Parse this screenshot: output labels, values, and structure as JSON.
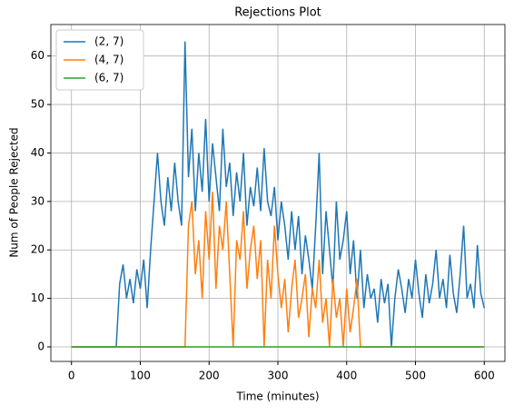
{
  "chart_data": {
    "type": "line",
    "title": "Rejections Plot",
    "x_label": "Time (minutes)",
    "y_label": "Num of People Rejected",
    "x": [
      0,
      5,
      10,
      15,
      20,
      25,
      30,
      35,
      40,
      45,
      50,
      55,
      60,
      65,
      70,
      75,
      80,
      85,
      90,
      95,
      100,
      105,
      110,
      115,
      120,
      125,
      130,
      135,
      140,
      145,
      150,
      155,
      160,
      165,
      170,
      175,
      180,
      185,
      190,
      195,
      200,
      205,
      210,
      215,
      220,
      225,
      230,
      235,
      240,
      245,
      250,
      255,
      260,
      265,
      270,
      275,
      280,
      285,
      290,
      295,
      300,
      305,
      310,
      315,
      320,
      325,
      330,
      335,
      340,
      345,
      350,
      355,
      360,
      365,
      370,
      375,
      380,
      385,
      390,
      395,
      400,
      405,
      410,
      415,
      420,
      425,
      430,
      435,
      440,
      445,
      450,
      455,
      460,
      465,
      470,
      475,
      480,
      485,
      490,
      495,
      500,
      505,
      510,
      515,
      520,
      525,
      530,
      535,
      540,
      545,
      550,
      555,
      560,
      565,
      570,
      575,
      580,
      585,
      590,
      595,
      600
    ],
    "series": [
      {
        "name": "(2, 7)",
        "color": "#1f77b4",
        "values": [
          0,
          0,
          0,
          0,
          0,
          0,
          0,
          0,
          0,
          0,
          0,
          0,
          0,
          0,
          13,
          17,
          10,
          14,
          9,
          16,
          12,
          18,
          8,
          20,
          30,
          40,
          30,
          25,
          35,
          28,
          38,
          30,
          25,
          63,
          35,
          45,
          28,
          40,
          32,
          47,
          30,
          42,
          35,
          28,
          45,
          33,
          38,
          27,
          36,
          30,
          40,
          25,
          33,
          29,
          37,
          28,
          41,
          30,
          27,
          33,
          22,
          30,
          25,
          18,
          28,
          20,
          27,
          15,
          23,
          18,
          12,
          25,
          40,
          15,
          28,
          20,
          12,
          30,
          18,
          22,
          28,
          15,
          22,
          10,
          20,
          8,
          15,
          10,
          12,
          5,
          14,
          9,
          13,
          0,
          10,
          16,
          12,
          7,
          14,
          10,
          18,
          11,
          6,
          15,
          9,
          13,
          20,
          10,
          14,
          8,
          19,
          11,
          7,
          15,
          25,
          10,
          13,
          8,
          21,
          11,
          8
        ]
      },
      {
        "name": "(4, 7)",
        "color": "#ff7f0e",
        "values": [
          0,
          0,
          0,
          0,
          0,
          0,
          0,
          0,
          0,
          0,
          0,
          0,
          0,
          0,
          0,
          0,
          0,
          0,
          0,
          0,
          0,
          0,
          0,
          0,
          0,
          0,
          0,
          0,
          0,
          0,
          0,
          0,
          0,
          0,
          25,
          30,
          15,
          22,
          10,
          28,
          18,
          32,
          12,
          25,
          20,
          30,
          15,
          0,
          22,
          18,
          28,
          12,
          20,
          25,
          14,
          22,
          0,
          18,
          10,
          25,
          15,
          8,
          14,
          3,
          12,
          18,
          6,
          10,
          15,
          2,
          12,
          8,
          18,
          5,
          10,
          0,
          14,
          6,
          10,
          0,
          12,
          3,
          8,
          14,
          0,
          0,
          0,
          0,
          0,
          0,
          0,
          0,
          0,
          0,
          0,
          0,
          0,
          0,
          0,
          0,
          0,
          0,
          0,
          0,
          0,
          0,
          0,
          0,
          0,
          0,
          0,
          0,
          0,
          0,
          0,
          0,
          0,
          0,
          0,
          0,
          0
        ]
      },
      {
        "name": "(6, 7)",
        "color": "#2ca02c",
        "values": [
          0,
          0,
          0,
          0,
          0,
          0,
          0,
          0,
          0,
          0,
          0,
          0,
          0,
          0,
          0,
          0,
          0,
          0,
          0,
          0,
          0,
          0,
          0,
          0,
          0,
          0,
          0,
          0,
          0,
          0,
          0,
          0,
          0,
          0,
          0,
          0,
          0,
          0,
          0,
          0,
          0,
          0,
          0,
          0,
          0,
          0,
          0,
          0,
          0,
          0,
          0,
          0,
          0,
          0,
          0,
          0,
          0,
          0,
          0,
          0,
          0,
          0,
          0,
          0,
          0,
          0,
          0,
          0,
          0,
          0,
          0,
          0,
          0,
          0,
          0,
          0,
          0,
          0,
          0,
          0,
          0,
          0,
          0,
          0,
          0,
          0,
          0,
          0,
          0,
          0,
          0,
          0,
          0,
          0,
          0,
          0,
          0,
          0,
          0,
          0,
          0,
          0,
          0,
          0,
          0,
          0,
          0,
          0,
          0,
          0,
          0,
          0,
          0,
          0,
          0,
          0,
          0,
          0,
          0,
          0,
          0
        ]
      }
    ],
    "xlim": [
      -30,
      630
    ],
    "ylim": [
      -3,
      66.5
    ],
    "xticks": [
      0,
      100,
      200,
      300,
      400,
      500,
      600
    ],
    "yticks": [
      0,
      10,
      20,
      30,
      40,
      50,
      60
    ],
    "grid": true,
    "legend": "upper left"
  }
}
